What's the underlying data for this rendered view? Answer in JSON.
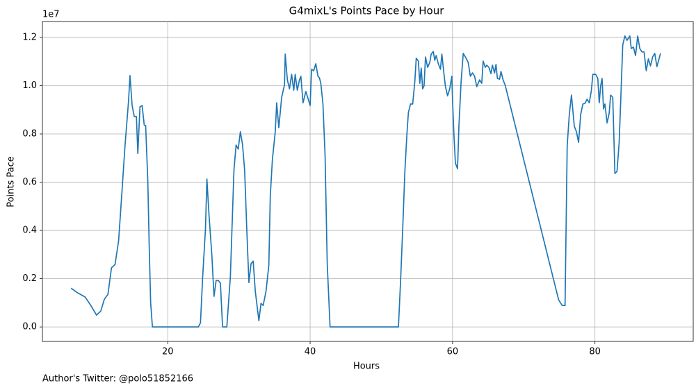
{
  "chart_data": {
    "type": "line",
    "title": "G4mixL's Points Pace by Hour",
    "x_label": "Hours",
    "y_label": "Points Pace",
    "y_offset_label": "1e7",
    "footnote": "Author's Twitter: @polo51852166",
    "color": "#1f77b4",
    "grid": true,
    "xlim": [
      2.4,
      93.8
    ],
    "ylim": [
      -600000,
      12660000
    ],
    "xticks": [
      20,
      40,
      60,
      80
    ],
    "yticks": [
      {
        "value": 0,
        "label": "0.0"
      },
      {
        "value": 2000000,
        "label": "0.2"
      },
      {
        "value": 4000000,
        "label": "0.4"
      },
      {
        "value": 6000000,
        "label": "0.6"
      },
      {
        "value": 8000000,
        "label": "0.8"
      },
      {
        "value": 10000000,
        "label": "1.0"
      },
      {
        "value": 12000000,
        "label": "1.2"
      }
    ],
    "x": [
      6.43,
      7.2,
      8.4,
      9.2,
      10.0,
      10.6,
      11.1,
      11.6,
      12.1,
      12.6,
      13.1,
      13.6,
      14.0,
      14.5,
      14.7,
      15.0,
      15.3,
      15.6,
      15.8,
      16.1,
      16.4,
      16.7,
      16.9,
      17.2,
      17.4,
      17.6,
      17.85,
      24.3,
      24.6,
      24.9,
      25.3,
      25.5,
      25.8,
      26.2,
      26.5,
      26.8,
      27.1,
      27.4,
      27.7,
      28.3,
      28.8,
      29.3,
      29.6,
      29.9,
      30.2,
      30.5,
      30.8,
      31.1,
      31.4,
      31.7,
      32.0,
      32.3,
      32.8,
      33.1,
      33.4,
      33.8,
      34.2,
      34.4,
      34.7,
      35.1,
      35.3,
      35.6,
      36.0,
      36.4,
      36.5,
      36.8,
      37.1,
      37.4,
      37.7,
      37.9,
      38.2,
      38.5,
      38.7,
      39.0,
      39.4,
      40.0,
      40.2,
      40.5,
      40.8,
      41.1,
      41.3,
      41.5,
      41.8,
      42.1,
      42.4,
      42.8,
      52.4,
      52.7,
      53.0,
      53.3,
      53.6,
      53.8,
      54.1,
      54.4,
      54.7,
      54.9,
      55.2,
      55.4,
      55.6,
      55.8,
      56.0,
      56.2,
      56.5,
      56.8,
      57.0,
      57.3,
      57.5,
      57.7,
      58.0,
      58.3,
      58.5,
      58.8,
      59.0,
      59.3,
      59.6,
      59.9,
      60.0,
      60.2,
      60.4,
      60.7,
      60.9,
      61.2,
      61.5,
      61.9,
      62.2,
      62.5,
      62.8,
      63.1,
      63.4,
      63.8,
      64.1,
      64.3,
      64.6,
      64.8,
      65.1,
      65.4,
      65.6,
      65.9,
      66.1,
      66.3,
      66.6,
      66.8,
      67.1,
      67.4,
      74.9,
      75.4,
      75.8,
      76.1,
      76.4,
      76.7,
      77.1,
      77.4,
      77.7,
      78.0,
      78.3,
      78.6,
      78.9,
      79.2,
      79.5,
      79.7,
      80.1,
      80.4,
      80.6,
      80.8,
      81.0,
      81.2,
      81.4,
      81.7,
      82.0,
      82.2,
      82.5,
      82.8,
      83.1,
      83.4,
      83.7,
      83.9,
      84.2,
      84.5,
      84.9,
      85.1,
      85.4,
      85.7,
      86.0,
      86.3,
      86.6,
      86.9,
      87.2,
      87.5,
      87.8,
      88.1,
      88.4,
      88.7,
      89.0,
      89.2
    ],
    "values": [
      1610000,
      1440000,
      1240000,
      890000,
      490000,
      660000,
      1150000,
      1350000,
      2450000,
      2590000,
      3570000,
      5730000,
      7510000,
      9380000,
      10420000,
      9180000,
      8720000,
      8720000,
      7190000,
      9120000,
      9180000,
      8370000,
      8350000,
      6070000,
      3340000,
      1010000,
      0,
      0,
      170000,
      2040000,
      4060000,
      6130000,
      4630000,
      2960000,
      1270000,
      1930000,
      1930000,
      1810000,
      0,
      0,
      2100000,
      6500000,
      7540000,
      7370000,
      8090000,
      7570000,
      6500000,
      4060000,
      1840000,
      2620000,
      2730000,
      1470000,
      260000,
      980000,
      890000,
      1470000,
      2560000,
      5410000,
      6940000,
      8090000,
      9290000,
      8260000,
      9520000,
      10040000,
      11310000,
      10240000,
      9870000,
      10470000,
      9810000,
      10470000,
      9810000,
      10240000,
      10390000,
      9290000,
      9760000,
      9180000,
      10680000,
      10620000,
      10910000,
      10390000,
      10330000,
      10100000,
      9240000,
      7080000,
      2620000,
      0,
      0,
      1900000,
      4060000,
      6420000,
      8030000,
      8890000,
      9240000,
      9240000,
      10160000,
      11140000,
      11020000,
      10100000,
      10730000,
      9870000,
      9990000,
      11190000,
      10760000,
      10960000,
      11310000,
      11420000,
      11050000,
      11250000,
      10910000,
      10680000,
      11310000,
      10470000,
      9960000,
      9580000,
      9870000,
      10390000,
      9380000,
      7940000,
      6790000,
      6560000,
      8370000,
      10160000,
      11340000,
      11140000,
      10960000,
      10390000,
      10530000,
      10390000,
      9960000,
      10240000,
      10100000,
      11020000,
      10760000,
      10850000,
      10760000,
      10500000,
      10850000,
      10530000,
      10880000,
      10300000,
      10270000,
      10590000,
      10240000,
      10010000,
      1120000,
      890000,
      890000,
      7510000,
      8810000,
      9610000,
      8320000,
      8090000,
      7650000,
      8810000,
      9240000,
      9270000,
      9440000,
      9290000,
      9810000,
      10470000,
      10470000,
      10300000,
      9290000,
      9990000,
      10300000,
      9040000,
      9240000,
      8460000,
      8860000,
      9610000,
      9520000,
      6360000,
      6450000,
      7650000,
      10040000,
      11680000,
      12060000,
      11880000,
      12060000,
      11540000,
      11600000,
      11250000,
      12060000,
      11540000,
      11400000,
      11400000,
      10620000,
      11110000,
      10820000,
      11190000,
      11340000,
      10790000,
      11110000,
      11340000
    ]
  }
}
